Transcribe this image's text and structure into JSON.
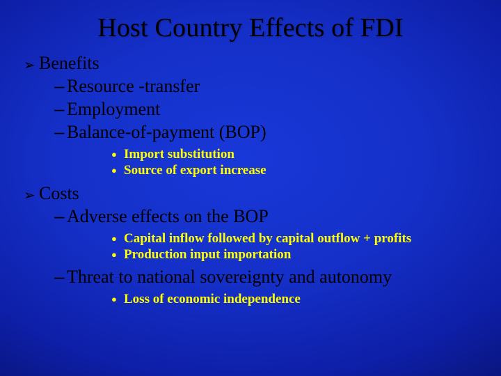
{
  "slide": {
    "title": "Host Country Effects of FDI",
    "colors": {
      "background_center": "#1838d8",
      "background_edge": "#050a50",
      "title_color": "#000000",
      "l1_color": "#000000",
      "l2_color": "#000000",
      "l3_color": "#ffff00"
    },
    "typography": {
      "font_family": "Times New Roman",
      "title_fontsize": 38,
      "l1_fontsize": 26,
      "l2_fontsize": 26,
      "l3_fontsize": 19,
      "l3_fontweight": "bold"
    },
    "bullets": {
      "l1_marker": "➢",
      "l2_marker": "–",
      "l3_marker": "●"
    },
    "benefits": {
      "label": "Benefits",
      "items": {
        "resource": "Resource -transfer",
        "employment": "Employment",
        "bop": "Balance-of-payment (BOP)",
        "bop_sub": {
          "import_sub": "Import substitution",
          "export_inc": "Source of export increase"
        }
      }
    },
    "costs": {
      "label": "Costs",
      "items": {
        "adverse_bop": "Adverse effects on the BOP",
        "adverse_bop_sub": {
          "capital_flow": "Capital inflow followed by capital outflow + profits",
          "input_import": "Production input importation"
        },
        "sovereignty": "Threat to national sovereignty and autonomy",
        "sovereignty_sub": {
          "loss_indep": "Loss of economic independence"
        }
      }
    }
  }
}
